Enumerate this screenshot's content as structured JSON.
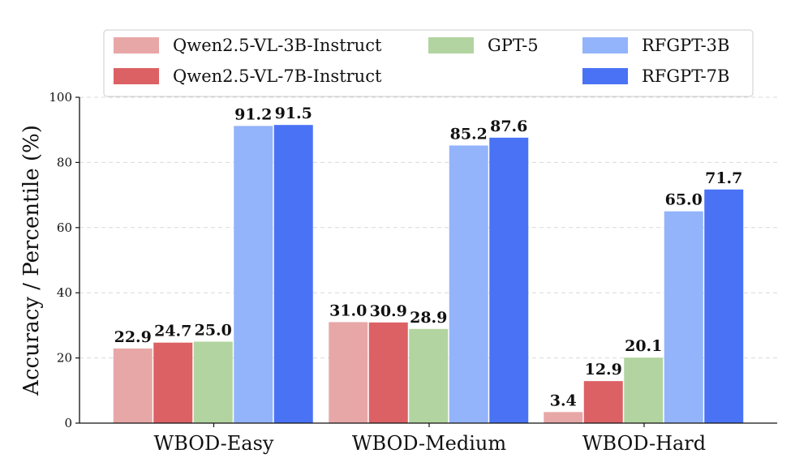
{
  "chart_data": {
    "type": "bar",
    "categories": [
      "WBOD-Easy",
      "WBOD-Medium",
      "WBOD-Hard"
    ],
    "series": [
      {
        "name": "Qwen2.5-VL-3B-Instruct",
        "color": "#e8a7a7",
        "values": [
          22.9,
          31.0,
          3.4
        ]
      },
      {
        "name": "Qwen2.5-VL-7B-Instruct",
        "color": "#dc6164",
        "values": [
          24.7,
          30.9,
          12.9
        ]
      },
      {
        "name": "GPT-5",
        "color": "#b2d4a0",
        "values": [
          25.0,
          28.9,
          20.1
        ]
      },
      {
        "name": "RFGPT-3B",
        "color": "#93b4fb",
        "values": [
          91.2,
          85.2,
          65.0
        ]
      },
      {
        "name": "RFGPT-7B",
        "color": "#4a72f5",
        "values": [
          91.5,
          87.6,
          71.7
        ]
      }
    ],
    "value_labels": [
      [
        "22.9",
        "31.0",
        "3.4"
      ],
      [
        "24.7",
        "30.9",
        "12.9"
      ],
      [
        "25.0",
        "28.9",
        "20.1"
      ],
      [
        "91.2",
        "85.2",
        "65.0"
      ],
      [
        "91.5",
        "87.6",
        "71.7"
      ]
    ],
    "ylabel": "Accuracy / Percentile (%)",
    "ylim": [
      0,
      100
    ],
    "yticks": [
      "0",
      "20",
      "40",
      "60",
      "80",
      "100"
    ],
    "grid": "horizontal-dashed",
    "legend": "top-center, 3 columns"
  }
}
